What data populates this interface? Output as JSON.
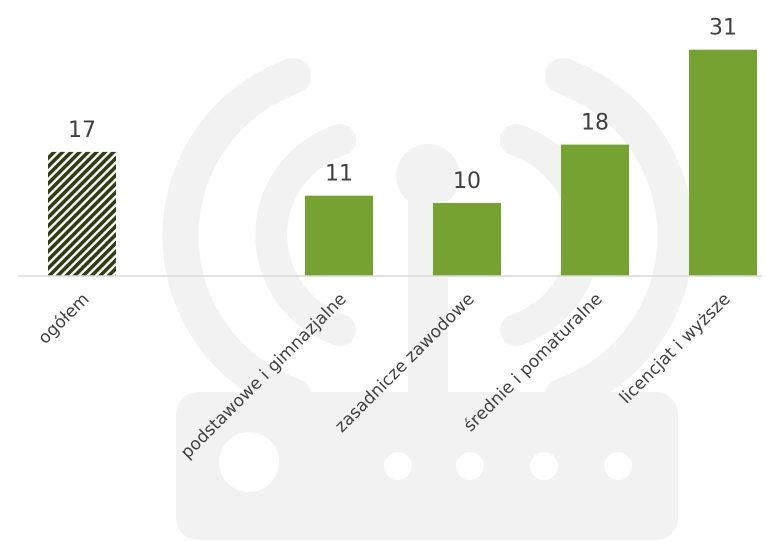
{
  "chart_data": {
    "type": "bar",
    "categories": [
      "ogółem",
      "podstawowe i gimnazjalne",
      "zasadnicze zawodowe",
      "średnie i pomaturalne",
      "licencjat i wyższe"
    ],
    "values": [
      17,
      11,
      10,
      18,
      31
    ],
    "title": "",
    "xlabel": "",
    "ylabel": "",
    "ylim": [
      0,
      31
    ],
    "grid": false,
    "legend": "none",
    "colors": {
      "bar": "#76a232",
      "hatch_dark": "#2f3d12",
      "axis": "#d9d9d9",
      "watermark": "#f2f2f2"
    },
    "watermark": "router-icon"
  }
}
